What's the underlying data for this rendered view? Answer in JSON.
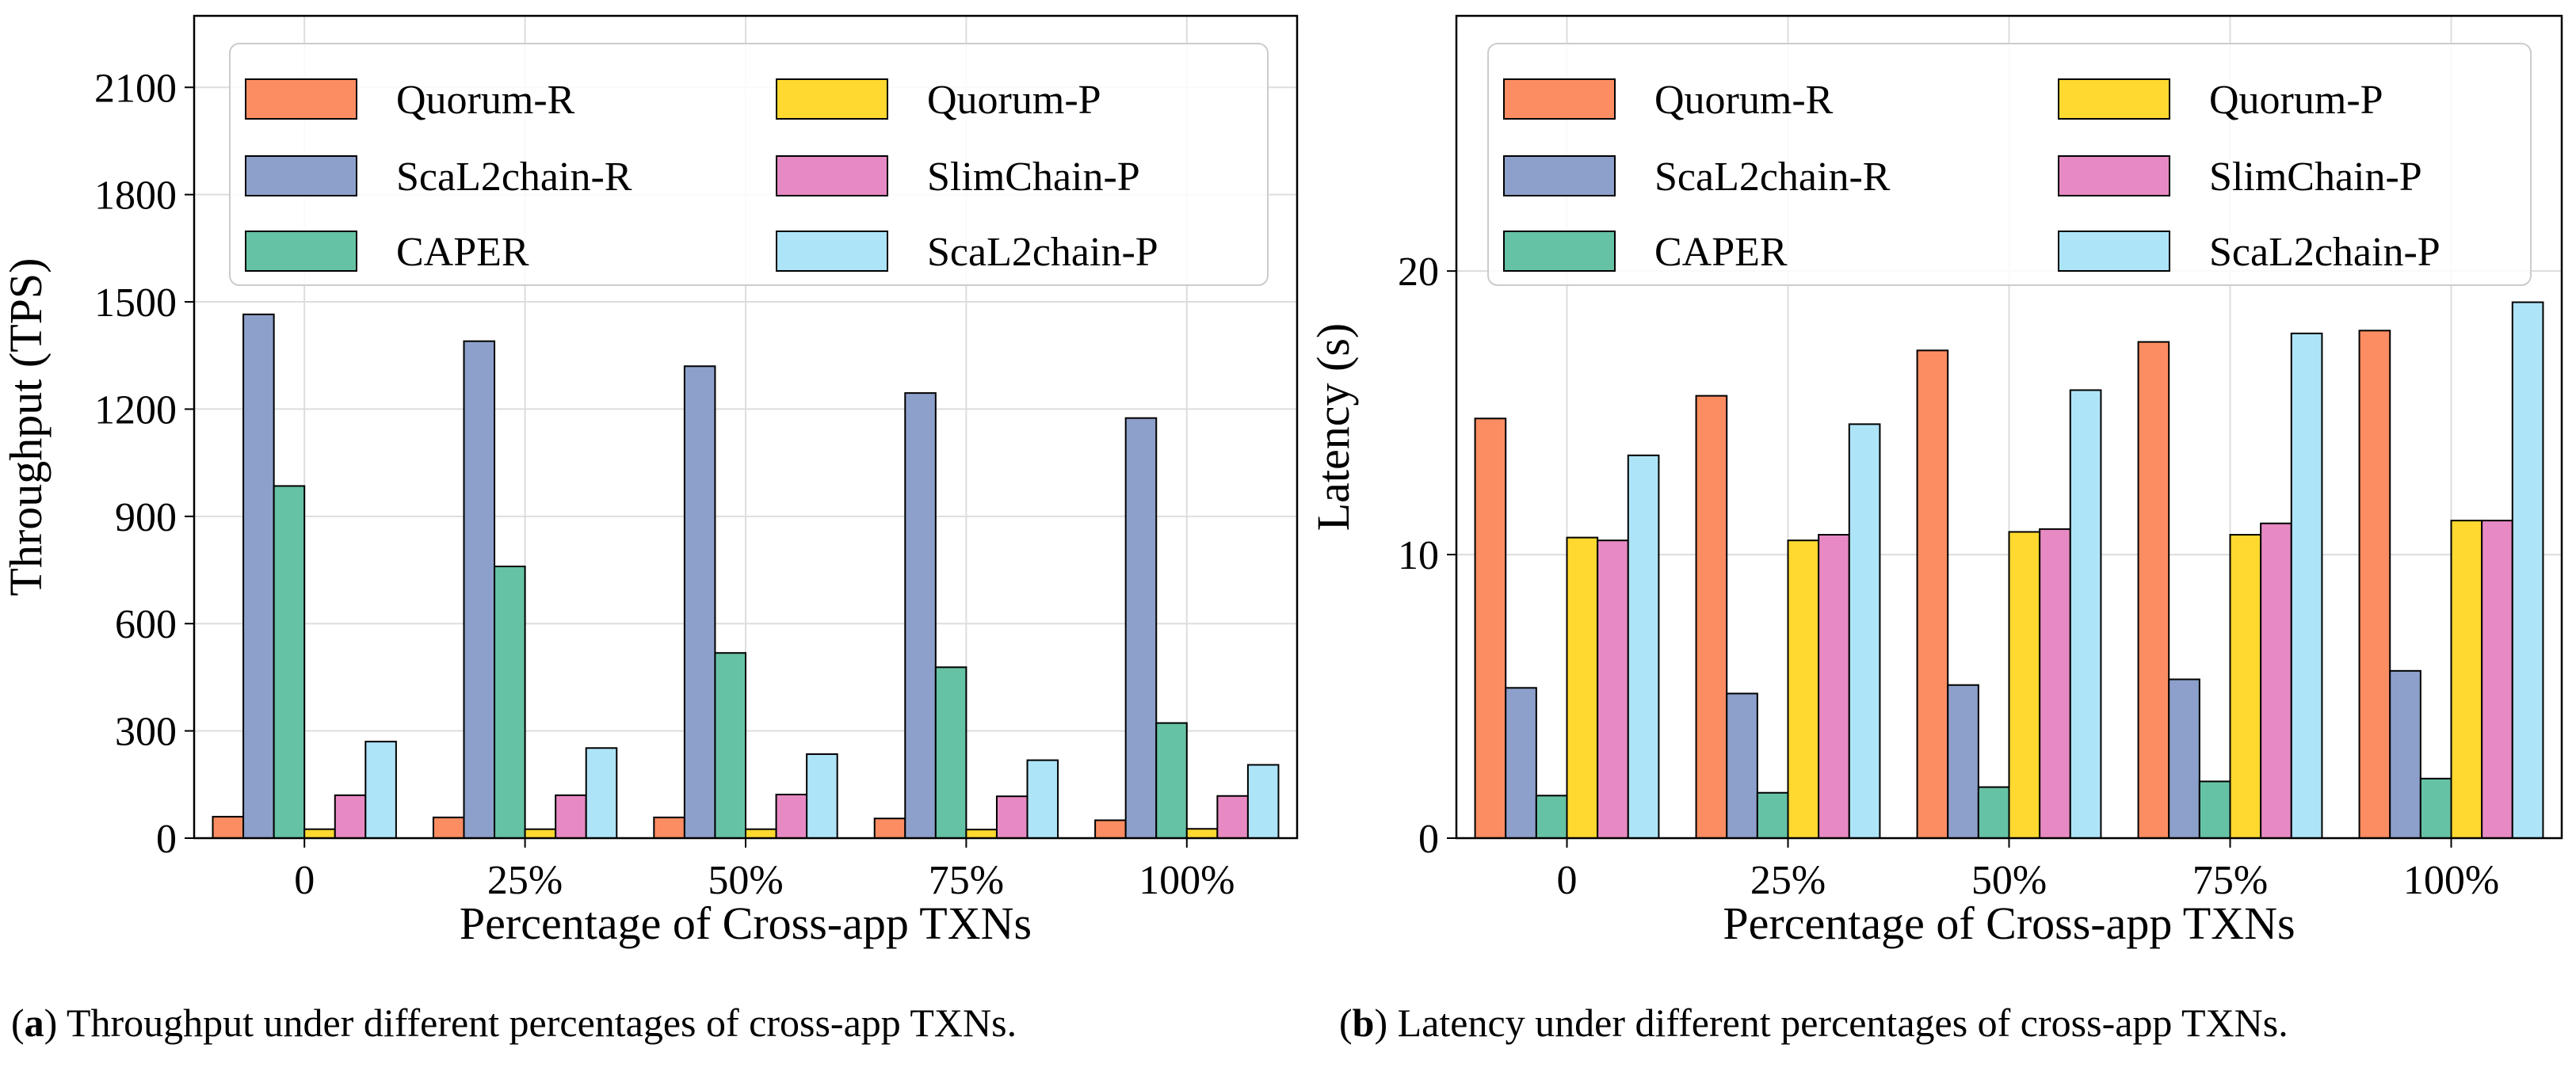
{
  "figure": {
    "captions": [
      {
        "letter": "a",
        "text": " Throughput under different percentages of cross-app TXNs."
      },
      {
        "letter": "b",
        "text": " Latency under different percentages of cross-app TXNs."
      }
    ]
  },
  "legend": [
    {
      "label": "Quorum-R",
      "color": "#fc8d62"
    },
    {
      "label": "Quorum-P",
      "color": "#ffd92f"
    },
    {
      "label": "ScaL2chain-R",
      "color": "#8da0cb"
    },
    {
      "label": "SlimChain-P",
      "color": "#e78ac3"
    },
    {
      "label": "CAPER",
      "color": "#66c2a5"
    },
    {
      "label": "ScaL2chain-P",
      "color": "#aee4f8"
    }
  ],
  "chart_data": [
    {
      "type": "bar",
      "title": "",
      "categories": [
        "0",
        "25%",
        "50%",
        "75%",
        "100%"
      ],
      "xlabel": "Percentage of Cross-app TXNs",
      "ylabel": "Throughput (TPS)",
      "ylim": [
        0,
        2300
      ],
      "yticks": [
        "0",
        "300",
        "600",
        "900",
        "1200",
        "1500",
        "1800",
        "2100"
      ],
      "grid": true,
      "legend_position": "top",
      "series": [
        {
          "name": "Quorum-R",
          "color": "#fc8d62",
          "values": [
            60,
            58,
            58,
            55,
            50
          ]
        },
        {
          "name": "ScaL2chain-R",
          "color": "#8da0cb",
          "values": [
            1465,
            1390,
            1320,
            1245,
            1175
          ]
        },
        {
          "name": "CAPER",
          "color": "#66c2a5",
          "values": [
            985,
            760,
            518,
            478,
            322
          ]
        },
        {
          "name": "Quorum-P",
          "color": "#ffd92f",
          "values": [
            25,
            25,
            25,
            24,
            26
          ]
        },
        {
          "name": "SlimChain-P",
          "color": "#e78ac3",
          "values": [
            120,
            120,
            122,
            117,
            118
          ]
        },
        {
          "name": "ScaL2chain-P",
          "color": "#aee4f8",
          "values": [
            270,
            252,
            235,
            218,
            205
          ]
        }
      ]
    },
    {
      "type": "bar",
      "title": "",
      "categories": [
        "0",
        "25%",
        "50%",
        "75%",
        "100%"
      ],
      "xlabel": "Percentage of Cross-app TXNs",
      "ylabel": "Latency (s)",
      "ylim": [
        0,
        29
      ],
      "yticks": [
        "0",
        "10",
        "20"
      ],
      "grid": true,
      "legend_position": "top",
      "series": [
        {
          "name": "Quorum-R",
          "color": "#fc8d62",
          "values": [
            14.8,
            15.6,
            17.2,
            17.5,
            17.9
          ]
        },
        {
          "name": "ScaL2chain-R",
          "color": "#8da0cb",
          "values": [
            5.3,
            5.1,
            5.4,
            5.6,
            5.9
          ]
        },
        {
          "name": "CAPER",
          "color": "#66c2a5",
          "values": [
            1.5,
            1.6,
            1.8,
            2.0,
            2.1
          ]
        },
        {
          "name": "Quorum-P",
          "color": "#ffd92f",
          "values": [
            10.6,
            10.5,
            10.8,
            10.7,
            11.2
          ]
        },
        {
          "name": "SlimChain-P",
          "color": "#e78ac3",
          "values": [
            10.5,
            10.7,
            10.9,
            11.1,
            11.2
          ]
        },
        {
          "name": "ScaL2chain-P",
          "color": "#aee4f8",
          "values": [
            13.5,
            14.6,
            15.8,
            17.8,
            18.9
          ]
        }
      ]
    }
  ]
}
